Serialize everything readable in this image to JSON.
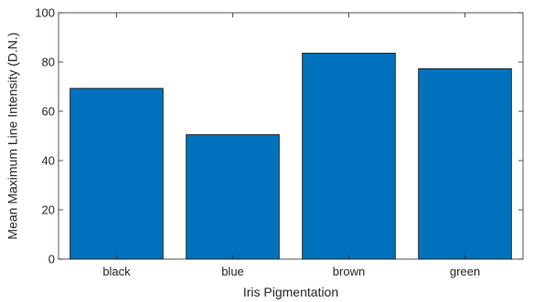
{
  "chart_data": {
    "type": "bar",
    "categories": [
      "black",
      "blue",
      "brown",
      "green"
    ],
    "values": [
      69.3,
      50.5,
      83.6,
      77.3
    ],
    "xlabel": "Iris Pigmentation",
    "ylabel": "Mean Maximum Line Intensity (D.N.)",
    "ylim": [
      0,
      100
    ],
    "yticks": [
      0,
      20,
      40,
      60,
      80,
      100
    ],
    "grid": false,
    "bar_color": "#0072bd",
    "edge_color": "#000000"
  }
}
